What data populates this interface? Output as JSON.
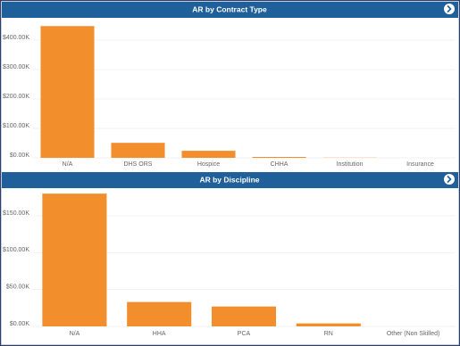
{
  "chart_data": [
    {
      "type": "bar",
      "title": "AR by Contract Type",
      "categories": [
        "N/A",
        "DHS ORS",
        "Hospice",
        "CHHA",
        "Institution",
        "Insurance"
      ],
      "values": [
        448,
        51,
        24,
        3,
        1.5,
        0
      ],
      "colors": [
        "#f28e2b",
        "#f28e2b",
        "#f28e2b",
        "#f28e2b",
        "#f9c89b",
        "#f28e2b"
      ],
      "ylim": [
        0,
        470
      ],
      "yticks": [
        {
          "value": 0,
          "label": "$0.00K"
        },
        {
          "value": 100,
          "label": "$100.00K"
        },
        {
          "value": 200,
          "label": "$200.00K"
        },
        {
          "value": 300,
          "label": "$300.00K"
        },
        {
          "value": 400,
          "label": "$400.00K"
        }
      ],
      "grid": true
    },
    {
      "type": "bar",
      "title": "AR by Discipline",
      "categories": [
        "N/A",
        "HHA",
        "PCA",
        "RN",
        "Other (Non Skilled)"
      ],
      "values": [
        180,
        33,
        27,
        4,
        0
      ],
      "colors": [
        "#f28e2b",
        "#f28e2b",
        "#f28e2b",
        "#f28e2b",
        "#f28e2b"
      ],
      "ylim": [
        0,
        185
      ],
      "yticks": [
        {
          "value": 0,
          "label": "$0.00K"
        },
        {
          "value": 50,
          "label": "$50.00K"
        },
        {
          "value": 100,
          "label": "$100.00K"
        },
        {
          "value": 150,
          "label": "$150.00K"
        }
      ],
      "grid": true
    }
  ]
}
